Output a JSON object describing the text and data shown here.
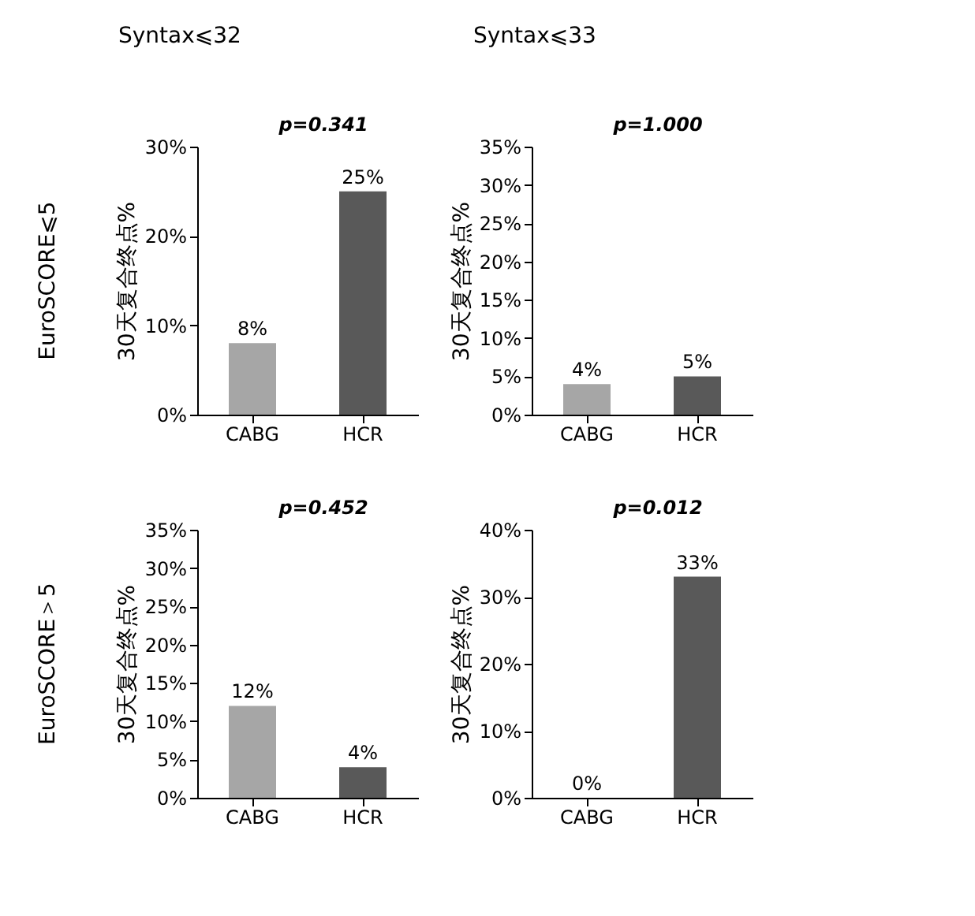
{
  "chart_data": [
    {
      "type": "other",
      "title": "Syntax⩽32"
    },
    {
      "type": "other",
      "title": "Syntax⩽33"
    },
    {
      "type": "other",
      "title": "EuroSCORE⩽5"
    },
    {
      "type": "bar",
      "categories": [
        "CABG",
        "HCR"
      ],
      "values": [
        8,
        25
      ],
      "colors": [
        "#a6a6a6",
        "#595959"
      ],
      "value_labels": [
        "8%",
        "25%"
      ],
      "ylabel": "30天复合终点%",
      "ylim": [
        0,
        30
      ],
      "yticks": [
        {
          "value": 0,
          "label": "0%"
        },
        {
          "value": 10,
          "label": "10%"
        },
        {
          "value": 20,
          "label": "20%"
        },
        {
          "value": 30,
          "label": "30%"
        }
      ],
      "annotations": [
        "p=0.341"
      ]
    },
    {
      "type": "bar",
      "categories": [
        "CABG",
        "HCR"
      ],
      "values": [
        4,
        5
      ],
      "colors": [
        "#a6a6a6",
        "#595959"
      ],
      "value_labels": [
        "4%",
        "5%"
      ],
      "ylabel": "30天复合终点%",
      "ylim": [
        0,
        35
      ],
      "yticks": [
        {
          "value": 0,
          "label": "0%"
        },
        {
          "value": 5,
          "label": "5%"
        },
        {
          "value": 10,
          "label": "10%"
        },
        {
          "value": 15,
          "label": "15%"
        },
        {
          "value": 20,
          "label": "20%"
        },
        {
          "value": 25,
          "label": "25%"
        },
        {
          "value": 30,
          "label": "30%"
        },
        {
          "value": 35,
          "label": "35%"
        }
      ],
      "annotations": [
        "p=1.000"
      ]
    },
    {
      "type": "other",
      "title": "EuroSCORE＞5"
    },
    {
      "type": "bar",
      "categories": [
        "CABG",
        "HCR"
      ],
      "values": [
        12,
        4
      ],
      "colors": [
        "#a6a6a6",
        "#595959"
      ],
      "value_labels": [
        "12%",
        "4%"
      ],
      "ylabel": "30天复合终点%",
      "ylim": [
        0,
        35
      ],
      "yticks": [
        {
          "value": 0,
          "label": "0%"
        },
        {
          "value": 5,
          "label": "5%"
        },
        {
          "value": 10,
          "label": "10%"
        },
        {
          "value": 15,
          "label": "15%"
        },
        {
          "value": 20,
          "label": "20%"
        },
        {
          "value": 25,
          "label": "25%"
        },
        {
          "value": 30,
          "label": "30%"
        },
        {
          "value": 35,
          "label": "35%"
        }
      ],
      "annotations": [
        "p=0.452"
      ]
    },
    {
      "type": "bar",
      "categories": [
        "CABG",
        "HCR"
      ],
      "values": [
        0,
        33
      ],
      "colors": [
        "#a6a6a6",
        "#595959"
      ],
      "value_labels": [
        "0%",
        "33%"
      ],
      "ylabel": "30天复合终点%",
      "ylim": [
        0,
        40
      ],
      "yticks": [
        {
          "value": 0,
          "label": "0%"
        },
        {
          "value": 10,
          "label": "10%"
        },
        {
          "value": 20,
          "label": "20%"
        },
        {
          "value": 30,
          "label": "30%"
        },
        {
          "value": 40,
          "label": "40%"
        }
      ],
      "annotations": [
        "p=0.012"
      ]
    }
  ]
}
